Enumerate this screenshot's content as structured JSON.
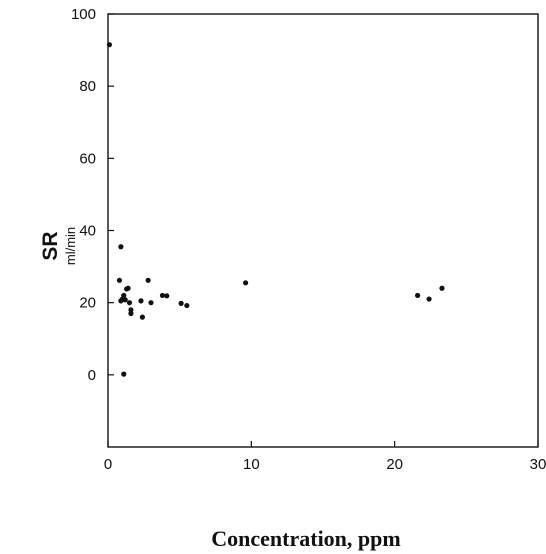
{
  "chart_data": {
    "type": "scatter",
    "title": "",
    "xlabel": "Concentration, ppm",
    "ylabel": "SR",
    "ylabel_unit": "ml/min",
    "xlim": [
      0,
      30
    ],
    "ylim": [
      -20,
      100
    ],
    "x_ticks": [
      0,
      10,
      20,
      30
    ],
    "y_ticks": [
      0,
      20,
      40,
      60,
      80,
      100
    ],
    "grid": false,
    "legend": "none",
    "marker_color": "#111111",
    "points": [
      {
        "x": 0.1,
        "y": 91.5
      },
      {
        "x": 0.9,
        "y": 35.5
      },
      {
        "x": 0.8,
        "y": 26.2
      },
      {
        "x": 1.4,
        "y": 24.0
      },
      {
        "x": 1.3,
        "y": 23.8
      },
      {
        "x": 1.1,
        "y": 22.0
      },
      {
        "x": 0.9,
        "y": 20.5
      },
      {
        "x": 1.0,
        "y": 21.0
      },
      {
        "x": 1.2,
        "y": 20.8
      },
      {
        "x": 1.5,
        "y": 20.0
      },
      {
        "x": 1.6,
        "y": 18.0
      },
      {
        "x": 1.6,
        "y": 17.0
      },
      {
        "x": 1.1,
        "y": 0.2
      },
      {
        "x": 2.3,
        "y": 20.5
      },
      {
        "x": 2.4,
        "y": 16.0
      },
      {
        "x": 2.8,
        "y": 26.2
      },
      {
        "x": 3.0,
        "y": 20.0
      },
      {
        "x": 3.8,
        "y": 22.0
      },
      {
        "x": 4.1,
        "y": 21.9
      },
      {
        "x": 5.1,
        "y": 19.8
      },
      {
        "x": 5.5,
        "y": 19.2
      },
      {
        "x": 9.6,
        "y": 25.5
      },
      {
        "x": 21.6,
        "y": 22.0
      },
      {
        "x": 22.4,
        "y": 21.0
      },
      {
        "x": 23.3,
        "y": 24.0
      }
    ]
  }
}
